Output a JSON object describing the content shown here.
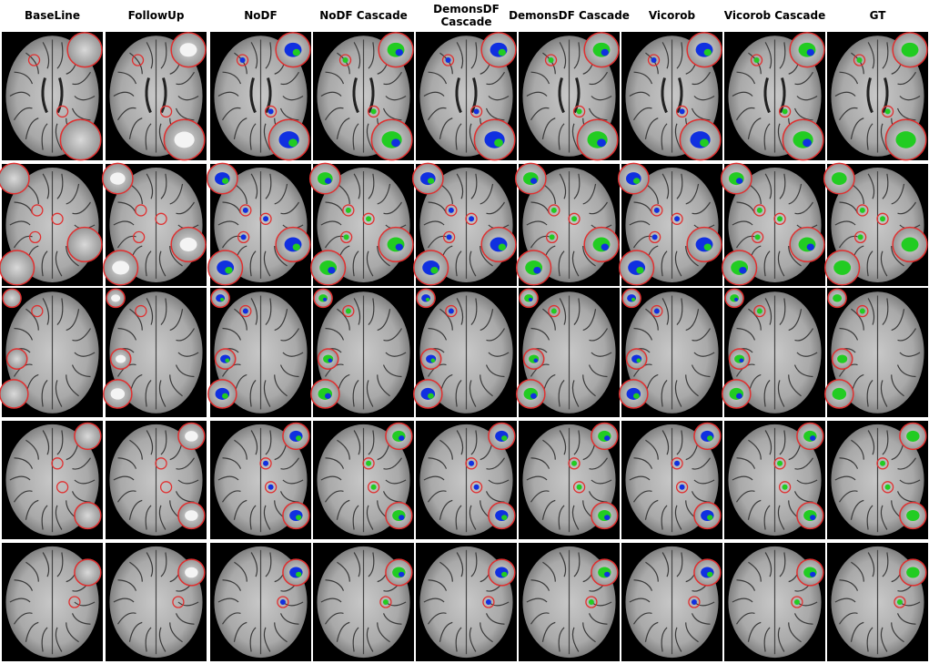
{
  "figure": {
    "columns": [
      "BaseLine",
      "FollowUp",
      "NoDF",
      "NoDF Cascade",
      "DemonsDF Cascade",
      "DemonsDF Cascade",
      "Vicorob",
      "Vicorob Cascade",
      "GT"
    ]
  }
}
